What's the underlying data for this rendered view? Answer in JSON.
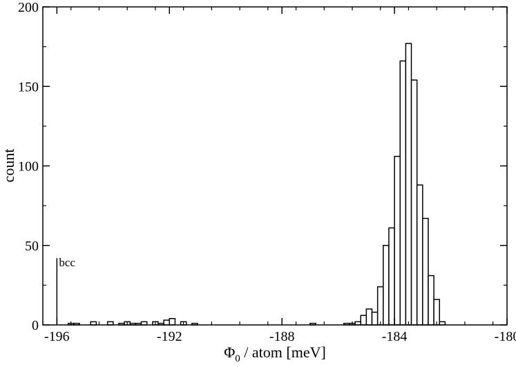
{
  "chart_data": {
    "type": "bar",
    "title": "",
    "xlabel": {
      "symbol": "Φ",
      "subscript": "0",
      "rest": " / atom [meV]"
    },
    "ylabel": "count",
    "xlim": [
      -196.5,
      -180
    ],
    "ylim": [
      0,
      200
    ],
    "xticks": [
      -196,
      -192,
      -188,
      -184,
      -180
    ],
    "xtick_labels": [
      "-196",
      "-192",
      "-188",
      "-184",
      "-180"
    ],
    "yticks": [
      0,
      50,
      100,
      150,
      200
    ],
    "ytick_labels": [
      "0",
      "50",
      "100",
      "150",
      "200"
    ],
    "grid": false,
    "bin_width": 0.2,
    "bins": [
      {
        "x": -195.5,
        "y": 1
      },
      {
        "x": -195.3,
        "y": 1
      },
      {
        "x": -194.7,
        "y": 2
      },
      {
        "x": -194.1,
        "y": 2
      },
      {
        "x": -193.7,
        "y": 1
      },
      {
        "x": -193.5,
        "y": 2
      },
      {
        "x": -193.3,
        "y": 1
      },
      {
        "x": -193.1,
        "y": 1
      },
      {
        "x": -192.9,
        "y": 2
      },
      {
        "x": -192.5,
        "y": 2
      },
      {
        "x": -192.3,
        "y": 1
      },
      {
        "x": -192.1,
        "y": 3
      },
      {
        "x": -191.9,
        "y": 4
      },
      {
        "x": -191.5,
        "y": 2
      },
      {
        "x": -191.1,
        "y": 1
      },
      {
        "x": -186.9,
        "y": 1
      },
      {
        "x": -185.7,
        "y": 1
      },
      {
        "x": -185.5,
        "y": 1
      },
      {
        "x": -185.3,
        "y": 2
      },
      {
        "x": -185.1,
        "y": 6
      },
      {
        "x": -184.9,
        "y": 10
      },
      {
        "x": -184.7,
        "y": 8
      },
      {
        "x": -184.5,
        "y": 24
      },
      {
        "x": -184.3,
        "y": 50
      },
      {
        "x": -184.1,
        "y": 61
      },
      {
        "x": -183.9,
        "y": 106
      },
      {
        "x": -183.7,
        "y": 166
      },
      {
        "x": -183.5,
        "y": 177
      },
      {
        "x": -183.3,
        "y": 154
      },
      {
        "x": -183.1,
        "y": 88
      },
      {
        "x": -182.9,
        "y": 67
      },
      {
        "x": -182.7,
        "y": 31
      },
      {
        "x": -182.5,
        "y": 16
      },
      {
        "x": -182.3,
        "y": 2
      }
    ],
    "spike": {
      "x": -196.0,
      "y": 42,
      "label": "bcc"
    }
  }
}
